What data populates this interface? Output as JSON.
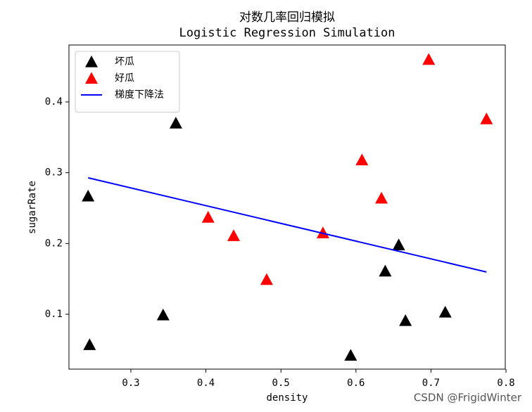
{
  "chart_data": {
    "type": "scatter",
    "title": "对数几率回归模拟",
    "subtitle": "Logistic Regression Simulation",
    "x_label": "density",
    "y_label": "sugarRate",
    "xlim": [
      0.2175,
      0.799
    ],
    "ylim": [
      0.0225,
      0.4804
    ],
    "xticks": [
      0.3,
      0.4,
      0.5,
      0.6,
      0.7,
      0.8
    ],
    "yticks": [
      0.1,
      0.2,
      0.3,
      0.4
    ],
    "grid": false,
    "legend": "upper left",
    "series": [
      {
        "name": "坏瓜",
        "color": "#000000",
        "type": "scatter",
        "marker": "triangle",
        "x": [
          0.666,
          0.243,
          0.245,
          0.343,
          0.639,
          0.657,
          0.36,
          0.593,
          0.719
        ],
        "values": [
          0.091,
          0.267,
          0.057,
          0.099,
          0.161,
          0.198,
          0.37,
          0.042,
          0.103
        ]
      },
      {
        "name": "好瓜",
        "color": "#ff0000",
        "type": "scatter",
        "marker": "triangle",
        "x": [
          0.697,
          0.774,
          0.634,
          0.608,
          0.556,
          0.403,
          0.481,
          0.437
        ],
        "values": [
          0.46,
          0.376,
          0.264,
          0.318,
          0.215,
          0.237,
          0.149,
          0.211
        ]
      },
      {
        "name": "梯度下降法",
        "color": "#0000ff",
        "type": "line",
        "x": [
          0.243,
          0.774
        ],
        "values": [
          0.2928,
          0.1597
        ]
      }
    ]
  },
  "watermark": "CSDN @FrigidWinter"
}
